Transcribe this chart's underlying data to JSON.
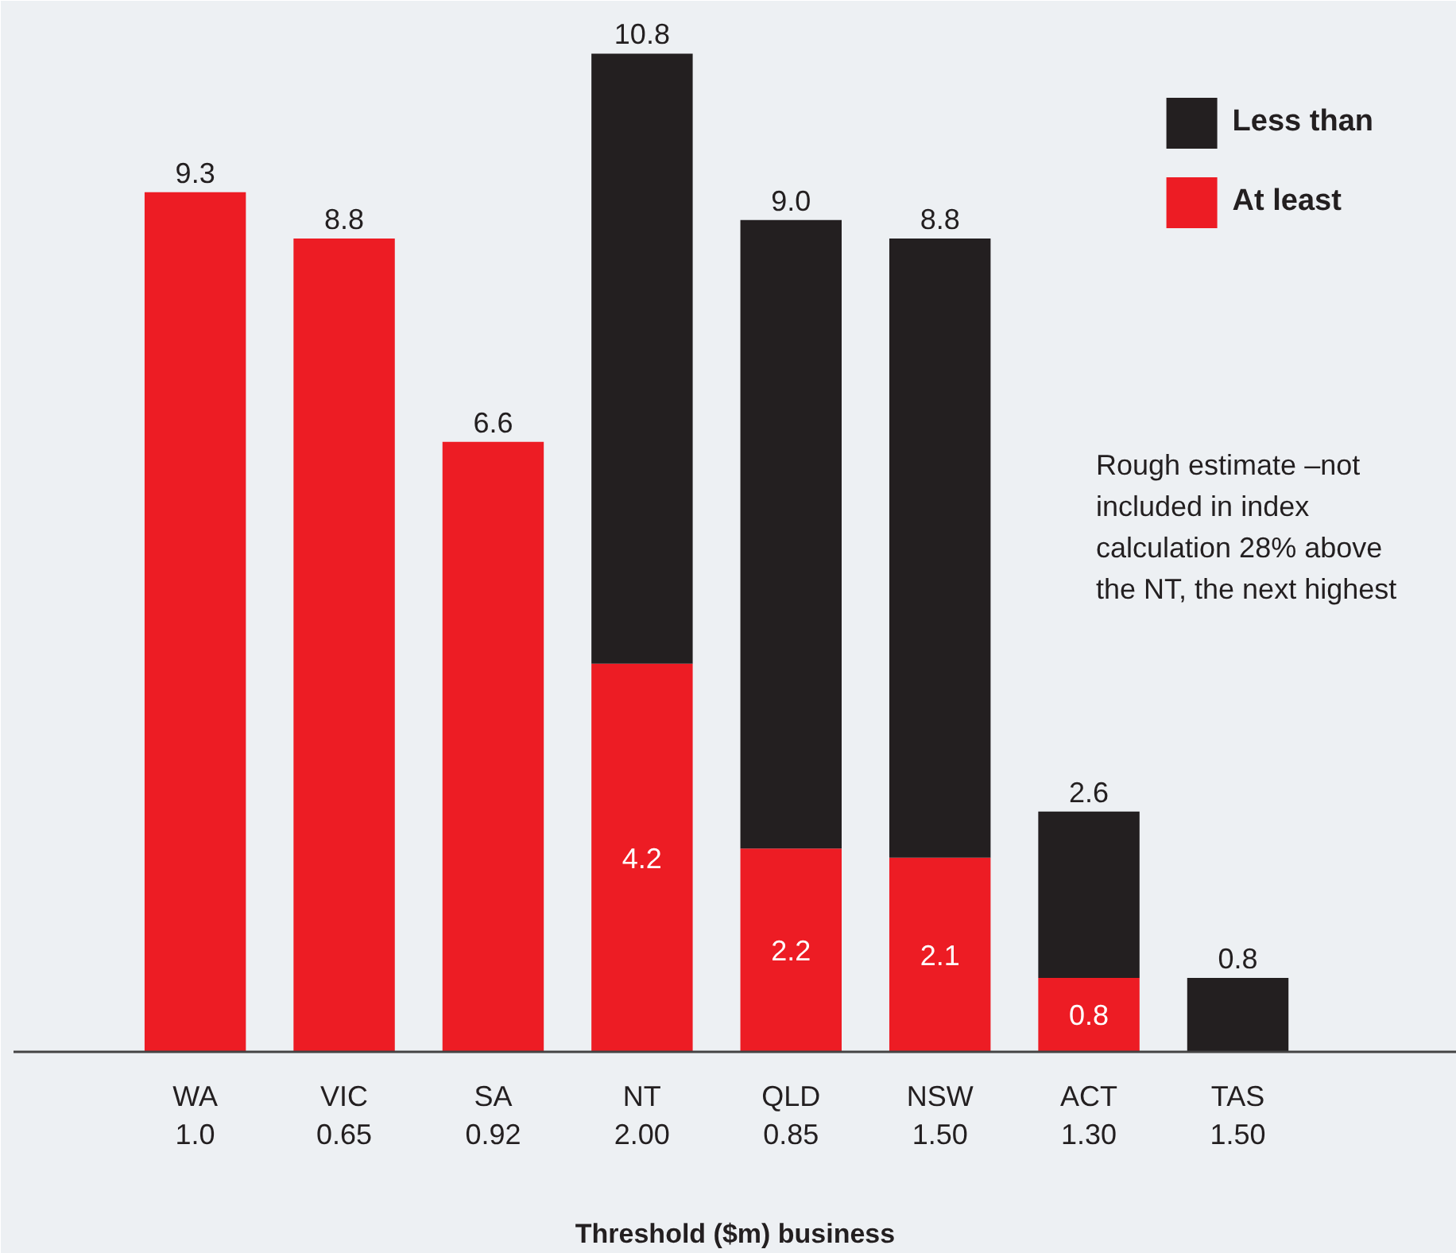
{
  "chart_data": {
    "type": "bar",
    "stacked": true,
    "categories": [
      "WA\n1.0",
      "VIC\n0.65",
      "SA\n0.92",
      "NT\n2.00",
      "QLD\n0.85",
      "NSW\n1.50",
      "ACT\n1.30",
      "TAS\n1.50"
    ],
    "series": [
      {
        "name": "At least",
        "color": "#ed1c24",
        "values": [
          9.3,
          8.8,
          6.6,
          4.2,
          2.2,
          2.1,
          0.8,
          null
        ],
        "value_labels": [
          null,
          null,
          null,
          "4.2",
          "2.2",
          "2.1",
          "0.8",
          null
        ]
      },
      {
        "name": "Less than",
        "color": "#231f20",
        "values": [
          null,
          null,
          null,
          6.6,
          6.8,
          6.7,
          1.8,
          0.8
        ]
      }
    ],
    "totals": [
      "9.3",
      "8.8",
      "6.6",
      "10.8",
      "9.0",
      "8.8",
      "2.6",
      "0.8"
    ],
    "xlabel": "Threshold ($m) business",
    "legend": "top right",
    "annotations": [
      "Rough estimate –not included in index calculation 28% above the NT, the next highest"
    ]
  }
}
